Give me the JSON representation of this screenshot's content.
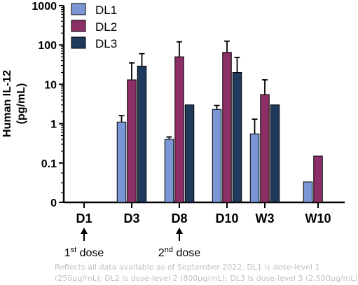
{
  "chart_data": {
    "type": "bar",
    "y_scale": "log_with_zero",
    "ylabel": "Human IL-12 (pg/mL)",
    "ylabel_lines": [
      "Human IL-12",
      "(pg/mL)"
    ],
    "y_ticks": [
      "0",
      "0.1",
      "1",
      "10",
      "100",
      "1000"
    ],
    "ylim": [
      0,
      1000
    ],
    "categories": [
      "D1",
      "D3",
      "D8",
      "D10",
      "W3",
      "W10"
    ],
    "series": [
      {
        "name": "DL1",
        "color": "#7b96d4",
        "values": [
          null,
          1.1,
          0.4,
          2.3,
          0.55,
          0.033
        ],
        "error_upper": [
          null,
          1.6,
          0.46,
          2.9,
          1.3,
          null
        ]
      },
      {
        "name": "DL2",
        "color": "#8c2f66",
        "values": [
          null,
          13,
          50,
          65,
          5.5,
          0.15
        ],
        "error_upper": [
          null,
          35,
          120,
          125,
          13,
          null
        ]
      },
      {
        "name": "DL3",
        "color": "#1f3a5c",
        "values": [
          null,
          29,
          3.0,
          20,
          3.0,
          null
        ],
        "error_upper": [
          null,
          60,
          null,
          48,
          null,
          null
        ]
      }
    ],
    "legend_position": "top-left",
    "annotations": [
      {
        "category": "D1",
        "sup": "st",
        "pre": "1",
        "post": " dose"
      },
      {
        "category": "D8",
        "sup": "nd",
        "pre": "2",
        "post": " dose"
      }
    ]
  },
  "footnote": {
    "line1": "Reflects all data available as of September 2022. DL1 is dose-level 1",
    "line2": "(250µg/mL); DL2 is dose-level 2 (800µg/mL); DL3 is dose-level 3 (2,500µg/mL)"
  }
}
